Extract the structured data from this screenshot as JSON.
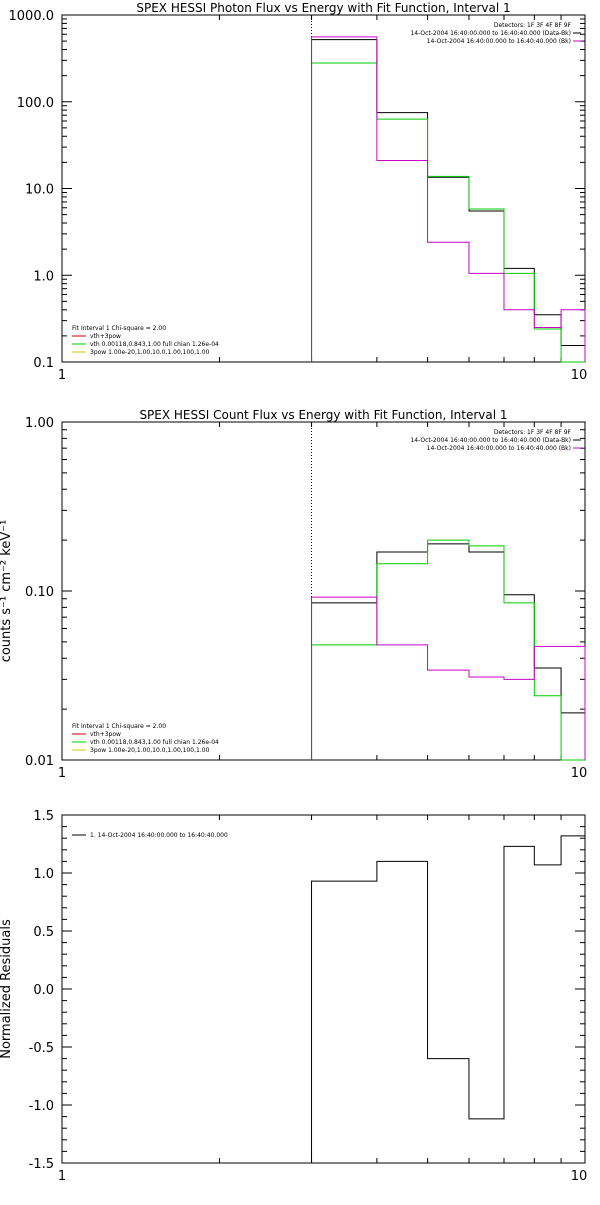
{
  "chart_data": [
    {
      "type": "line",
      "title": "SPEX HESSI Photon Flux vs Energy with Fit Function, Interval 1",
      "xlabel": "",
      "ylabel": "",
      "xscale": "log",
      "yscale": "log",
      "xlim": [
        1,
        10
      ],
      "ylim": [
        0.1,
        1000
      ],
      "x_ticks": [
        "1",
        "10"
      ],
      "y_ticks": [
        "0.1",
        "1.0",
        "10.0",
        "100.0",
        "1000.0"
      ],
      "bin_edges": [
        3,
        4,
        5,
        6,
        7,
        8,
        9,
        10
      ],
      "marker_line_x": 3,
      "legend_top_right": [
        "Detectors: 1F 3F 4F 8F 9F",
        "14-Oct-2004 16:40:00.000 to 16:40:40.000 (Data-Bk)",
        "14-Oct-2004 16:40:00.000 to 16:40:40.000 (Bk)"
      ],
      "legend_bottom_left": [
        "Fit Interval 1   Chi-square = 2.00",
        "vth+3pow",
        "vth 0.00118,0.843,1.00  full chian 1.26e-04",
        "3pow 1.00e-20,1.00,10.0,1.00,100,1.00"
      ],
      "series": [
        {
          "color": "#000000",
          "values": [
            520,
            75,
            13.5,
            5.5,
            1.2,
            0.35,
            0.155
          ]
        },
        {
          "color": "#00cc00",
          "values": [
            280,
            63,
            13.8,
            5.8,
            1.05,
            0.24,
            0.09
          ]
        },
        {
          "color": "#cc00cc",
          "values": [
            560,
            21,
            2.4,
            1.05,
            0.4,
            0.25,
            0.4
          ]
        }
      ],
      "fit_series_colors": [
        "#cc0000",
        "#00cc00",
        "#cccc00"
      ]
    },
    {
      "type": "line",
      "title": "SPEX HESSI Count Flux vs Energy with Fit Function, Interval 1",
      "xlabel": "",
      "ylabel": "counts s⁻¹ cm⁻² keV⁻¹",
      "xscale": "log",
      "yscale": "log",
      "xlim": [
        1,
        10
      ],
      "ylim": [
        0.01,
        1.0
      ],
      "x_ticks": [
        "1",
        "10"
      ],
      "y_ticks": [
        "0.01",
        "0.10",
        "1.00"
      ],
      "bin_edges": [
        3,
        4,
        5,
        6,
        7,
        8,
        9,
        10
      ],
      "marker_line_x": 3,
      "legend_top_right": [
        "Detectors: 1F 3F 4F 8F 9F",
        "14-Oct-2004 16:40:00.000 to 16:40:40.000 (Data-Bk)",
        "14-Oct-2004 16:40:00.000 to 16:40:40.000 (Bk)"
      ],
      "legend_bottom_left": [
        "Fit Interval 1   Chi-square = 2.00",
        "vth+3pow",
        "vth 0.00118,0.843,1.00  full chian 1.26e-04",
        "3pow 1.00e-20,1.00,10.0,1.00,100,1.00"
      ],
      "series": [
        {
          "color": "#000000",
          "values": [
            0.085,
            0.17,
            0.19,
            0.17,
            0.095,
            0.035,
            0.019
          ]
        },
        {
          "color": "#00cc00",
          "values": [
            0.048,
            0.145,
            0.2,
            0.185,
            0.085,
            0.024,
            0.0098
          ]
        },
        {
          "color": "#cc00cc",
          "values": [
            0.092,
            0.048,
            0.034,
            0.031,
            0.03,
            0.047,
            0.047
          ]
        }
      ],
      "fit_series_colors": [
        "#cc0000",
        "#00cc00",
        "#cccc00"
      ]
    },
    {
      "type": "line",
      "title": "",
      "xlabel": "",
      "ylabel": "Normalized Residuals",
      "xscale": "log",
      "yscale": "linear",
      "xlim": [
        1,
        10
      ],
      "ylim": [
        -1.5,
        1.5
      ],
      "x_ticks": [
        "1",
        "10"
      ],
      "y_ticks": [
        "-1.5",
        "-1.0",
        "-0.5",
        "0.0",
        "0.5",
        "1.0",
        "1.5"
      ],
      "bin_edges": [
        3,
        4,
        5,
        6,
        7,
        8,
        9,
        10
      ],
      "legend_top_left": [
        "1. 14-Oct-2004 16:40:00.000 to 16:40:40.000"
      ],
      "series": [
        {
          "name": "1. 14-Oct-2004 16:40:00.000 to 16:40:40.000",
          "color": "#000000",
          "values": [
            0.93,
            1.1,
            -0.6,
            -1.12,
            1.23,
            1.07,
            1.32
          ]
        }
      ]
    }
  ]
}
